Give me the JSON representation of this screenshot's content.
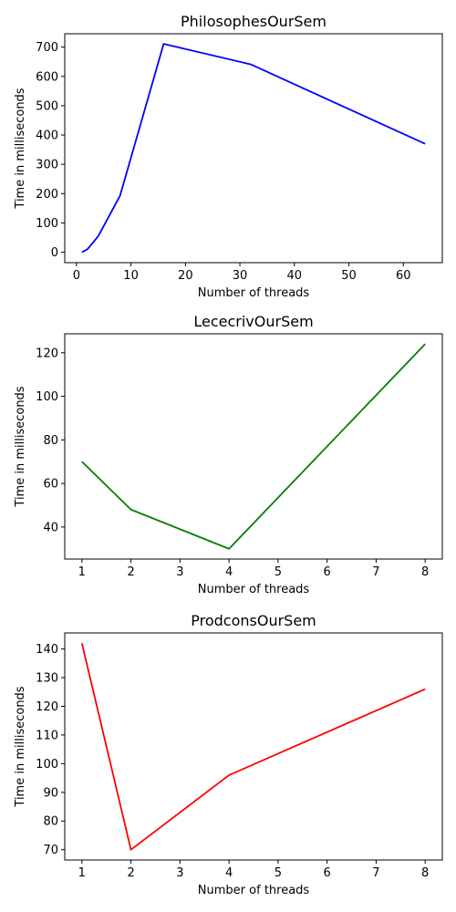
{
  "chart_data": [
    {
      "type": "line",
      "title": "PhilosophesOurSem",
      "xlabel": "Number of threads",
      "ylabel": "Time in milliseconds",
      "xlim": [
        -2.15,
        67.15
      ],
      "ylim": [
        -35.5,
        745.5
      ],
      "xticks": [
        0,
        10,
        20,
        30,
        40,
        50,
        60
      ],
      "yticks": [
        0,
        100,
        200,
        300,
        400,
        500,
        600,
        700
      ],
      "grid": false,
      "series": [
        {
          "color": "#0000ff",
          "x": [
            1,
            2,
            4,
            8,
            16,
            32,
            64
          ],
          "y": [
            0,
            10,
            55,
            193,
            711,
            641,
            370
          ]
        }
      ]
    },
    {
      "type": "line",
      "title": "LececrivOurSem",
      "xlabel": "Number of threads",
      "ylabel": "Time in milliseconds",
      "xlim": [
        0.65,
        8.35
      ],
      "ylim": [
        25.3,
        128.7
      ],
      "xticks": [
        1,
        2,
        3,
        4,
        5,
        6,
        7,
        8
      ],
      "yticks": [
        40,
        60,
        80,
        100,
        120
      ],
      "grid": false,
      "series": [
        {
          "color": "#008000",
          "x": [
            1,
            2,
            4,
            8
          ],
          "y": [
            70,
            48,
            30,
            124
          ]
        }
      ]
    },
    {
      "type": "line",
      "title": "ProdconsOurSem",
      "xlabel": "Number of threads",
      "ylabel": "Time in milliseconds",
      "xlim": [
        0.65,
        8.35
      ],
      "ylim": [
        66.4,
        145.6
      ],
      "xticks": [
        1,
        2,
        3,
        4,
        5,
        6,
        7,
        8
      ],
      "yticks": [
        70,
        80,
        90,
        100,
        110,
        120,
        130,
        140
      ],
      "grid": false,
      "series": [
        {
          "color": "#ff0000",
          "x": [
            1,
            2,
            4,
            8
          ],
          "y": [
            142,
            70,
            96,
            126
          ]
        }
      ]
    }
  ]
}
